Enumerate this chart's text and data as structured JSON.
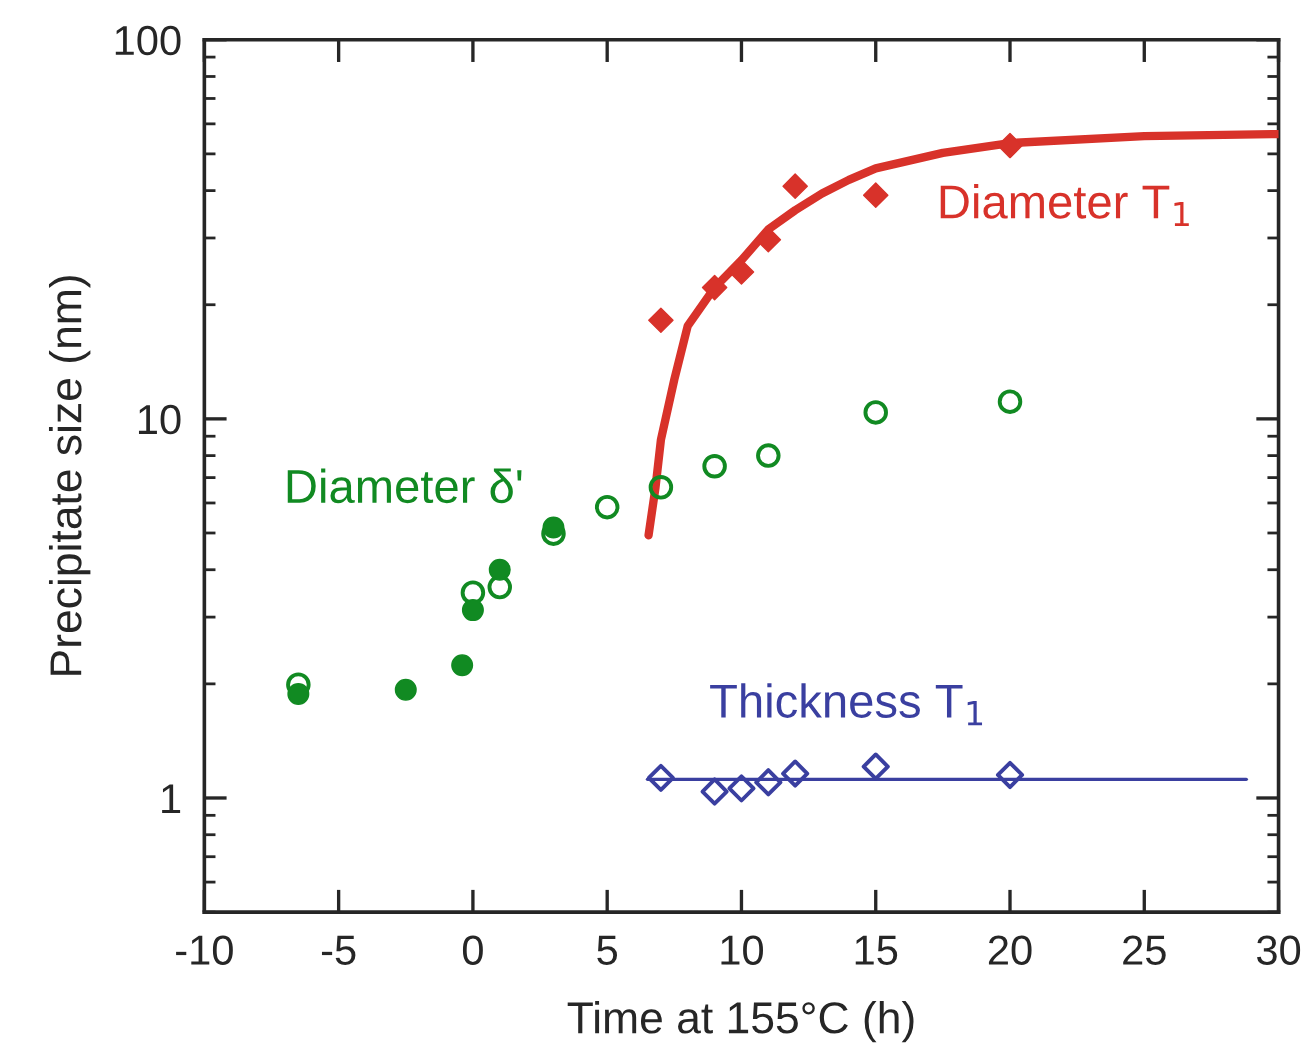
{
  "chart_data": {
    "type": "scatter",
    "xlabel": "Time at 155°C (h)",
    "ylabel": "Precipitate size (nm)",
    "log": "y",
    "xlim": [
      -10,
      30
    ],
    "xticks": [
      -10,
      -5,
      0,
      5,
      10,
      15,
      20,
      25,
      30
    ],
    "ylim": [
      0.5,
      100
    ],
    "yticks": [
      1,
      10,
      100
    ],
    "grid": false,
    "legend": false,
    "series": [
      {
        "name": "Diameter T$_{1}$",
        "marker": "diamond",
        "color": "#d8322a",
        "x": [
          7,
          9,
          10,
          11,
          12,
          15,
          20
        ],
        "values": [
          18.2,
          22.2,
          24.4,
          29.7,
          41.1,
          38.9,
          52.6
        ]
      },
      {
        "type": "line",
        "line_style": "solid",
        "color": "#d8322a",
        "x": [
          6.54,
          6.8,
          7,
          7.5,
          8,
          9,
          10,
          11,
          12,
          13,
          14,
          15,
          17.5,
          20,
          25,
          30
        ],
        "values": [
          4.93,
          6.6,
          8.8,
          12.7,
          17.6,
          22.2,
          26.2,
          31.6,
          35.5,
          39.3,
          42.7,
          45.8,
          50.3,
          53.4,
          55.7,
          56.4
        ]
      },
      {
        "name": "Diameter δ'",
        "marker": "circle",
        "color": "#118a22",
        "x": [
          -6.5,
          0,
          1,
          3,
          5,
          7,
          9,
          11,
          15,
          20
        ],
        "values": [
          1.99,
          3.48,
          3.6,
          4.98,
          5.85,
          6.6,
          7.5,
          8.0,
          10.4,
          11.1
        ]
      },
      {
        "marker": "circle",
        "color": "#118a22",
        "x": [
          -6.5,
          -2.5,
          -0.4,
          0,
          1,
          3
        ],
        "values": [
          1.88,
          1.93,
          2.24,
          3.13,
          4.0,
          5.17
        ]
      },
      {
        "name": "Thickness T$_{1}$",
        "marker": "diamond",
        "color": "#3a3fa0",
        "x": [
          7,
          9,
          10,
          11,
          12,
          15,
          20
        ],
        "values": [
          1.13,
          1.04,
          1.06,
          1.1,
          1.16,
          1.21,
          1.15
        ]
      },
      {
        "type": "line",
        "line_style": "solid",
        "color": "#3a3fa0",
        "x": [
          6.5,
          28.8
        ],
        "values": [
          1.12,
          1.12
        ]
      }
    ]
  }
}
